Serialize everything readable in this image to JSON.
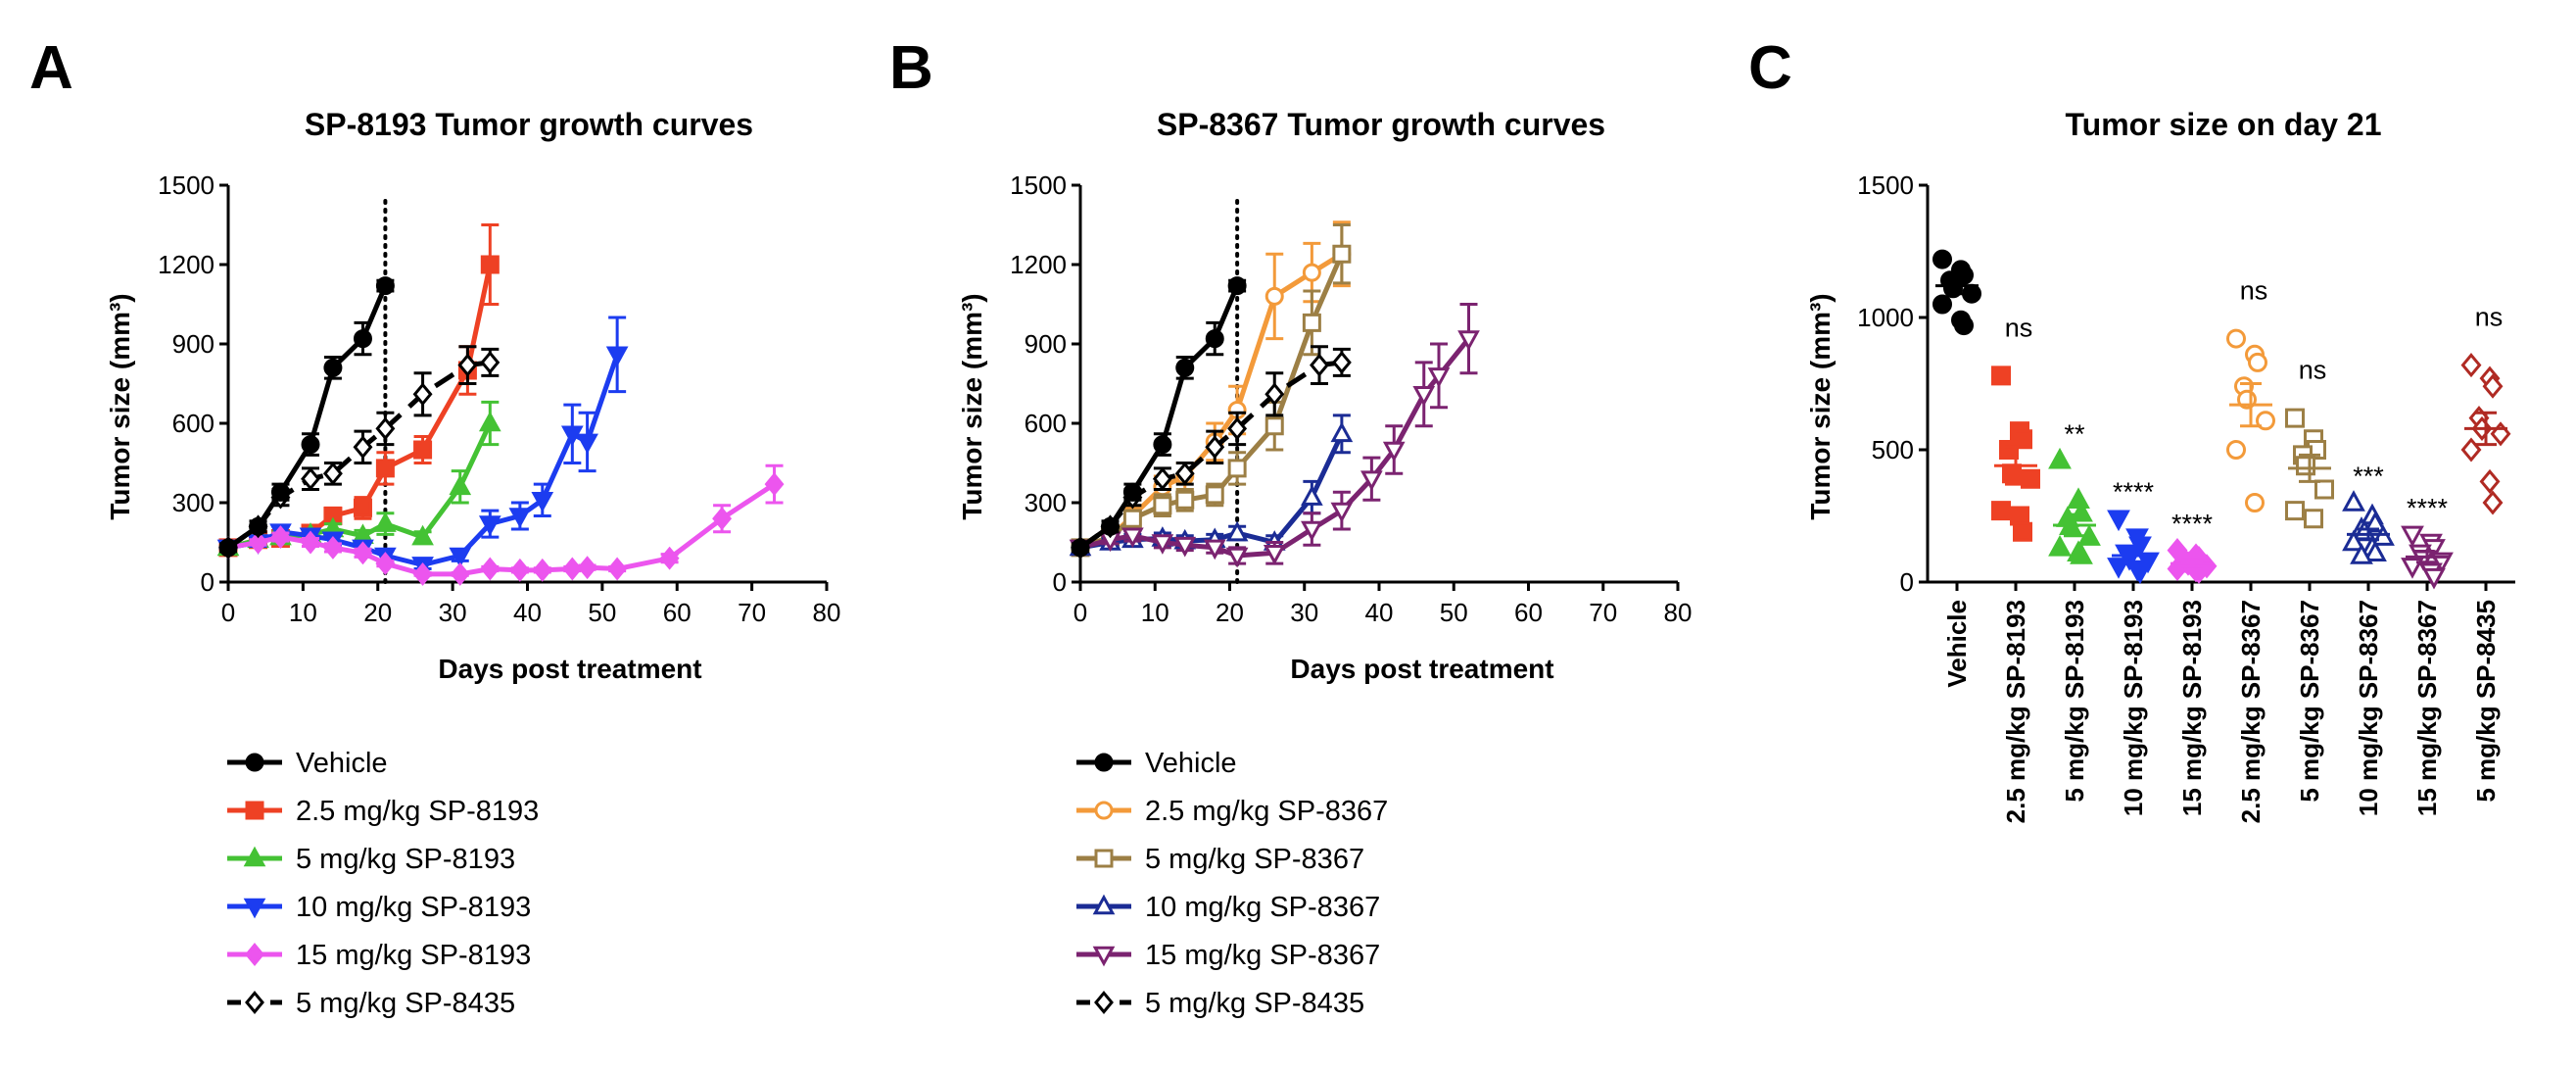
{
  "panels": [
    {
      "letter": "A",
      "title": "SP-8193 Tumor growth curves"
    },
    {
      "letter": "B",
      "title": "SP-8367 Tumor growth curves"
    },
    {
      "letter": "C",
      "title": "Tumor size on day 21"
    }
  ],
  "styles": {
    "black": {
      "color": "#000000",
      "marker": "circle",
      "fill": true,
      "dash": false
    },
    "red": {
      "color": "#EE4124",
      "marker": "square",
      "fill": true,
      "dash": false
    },
    "green": {
      "color": "#44C234",
      "marker": "triangle",
      "fill": true,
      "dash": false
    },
    "blue": {
      "color": "#1C3CF0",
      "marker": "tri-down",
      "fill": true,
      "dash": false
    },
    "magenta": {
      "color": "#EC55EE",
      "marker": "diamond",
      "fill": true,
      "dash": false
    },
    "sp8435": {
      "color": "#000000",
      "marker": "diamond",
      "fill": false,
      "dash": true
    },
    "orange": {
      "color": "#F39A3A",
      "marker": "circle",
      "fill": false,
      "dash": false
    },
    "olive": {
      "color": "#9C7F45",
      "marker": "square",
      "fill": false,
      "dash": false
    },
    "navy": {
      "color": "#1B2C95",
      "marker": "triangle",
      "fill": false,
      "dash": false
    },
    "purple": {
      "color": "#7B2370",
      "marker": "tri-down",
      "fill": false,
      "dash": false
    },
    "darkred": {
      "color": "#B02A23",
      "marker": "diamond",
      "fill": false,
      "dash": false
    }
  },
  "chart_data": [
    {
      "type": "line",
      "title": "SP-8193 Tumor growth curves",
      "xlabel": "Days post treatment",
      "ylabel": "Tumor size (mm³)",
      "xlim": [
        0,
        80
      ],
      "ylim": [
        0,
        1500
      ],
      "xticks": [
        0,
        10,
        20,
        30,
        40,
        50,
        60,
        70,
        80
      ],
      "yticks": [
        0,
        300,
        600,
        900,
        1200,
        1500
      ],
      "vline_x": 21,
      "series": [
        {
          "name": "Vehicle",
          "style": "black",
          "x": [
            0,
            4,
            7,
            11,
            14,
            18,
            21
          ],
          "y": [
            130,
            210,
            340,
            520,
            810,
            920,
            1120
          ],
          "err": [
            15,
            20,
            30,
            40,
            40,
            60,
            20
          ]
        },
        {
          "name": "2.5 mg/kg SP-8193",
          "style": "red",
          "x": [
            0,
            4,
            7,
            11,
            14,
            18,
            21,
            26,
            32,
            35
          ],
          "y": [
            130,
            160,
            165,
            185,
            250,
            280,
            430,
            500,
            800,
            1200
          ],
          "err": [
            10,
            15,
            20,
            20,
            30,
            40,
            60,
            50,
            90,
            150
          ]
        },
        {
          "name": "5 mg/kg SP-8193",
          "style": "green",
          "x": [
            0,
            4,
            7,
            11,
            14,
            18,
            21,
            26,
            31,
            35
          ],
          "y": [
            130,
            160,
            170,
            180,
            200,
            175,
            220,
            170,
            360,
            600
          ],
          "err": [
            10,
            15,
            20,
            20,
            20,
            20,
            40,
            20,
            60,
            80
          ]
        },
        {
          "name": "10 mg/kg SP-8193",
          "style": "blue",
          "x": [
            0,
            4,
            7,
            11,
            14,
            18,
            21,
            26,
            31,
            35,
            39,
            42,
            46,
            48,
            52
          ],
          "y": [
            130,
            150,
            190,
            175,
            160,
            130,
            100,
            65,
            100,
            220,
            250,
            310,
            560,
            530,
            860
          ],
          "err": [
            10,
            15,
            20,
            20,
            20,
            20,
            20,
            15,
            20,
            50,
            50,
            60,
            110,
            110,
            140
          ]
        },
        {
          "name": "15 mg/kg SP-8193",
          "style": "magenta",
          "x": [
            0,
            4,
            7,
            11,
            14,
            18,
            21,
            26,
            31,
            35,
            39,
            42,
            46,
            48,
            52,
            59,
            66,
            73
          ],
          "y": [
            130,
            150,
            170,
            150,
            130,
            110,
            70,
            30,
            30,
            50,
            45,
            45,
            50,
            55,
            50,
            90,
            240,
            370
          ],
          "err": [
            10,
            10,
            15,
            15,
            15,
            15,
            10,
            5,
            5,
            8,
            8,
            8,
            8,
            8,
            8,
            15,
            50,
            70
          ]
        },
        {
          "name": "5 mg/kg SP-8435",
          "style": "sp8435",
          "x": [
            0,
            4,
            7,
            11,
            14,
            18,
            21,
            26,
            32,
            35
          ],
          "y": [
            130,
            210,
            320,
            390,
            410,
            510,
            580,
            710,
            820,
            830
          ],
          "err": [
            10,
            20,
            30,
            40,
            40,
            60,
            60,
            80,
            70,
            50
          ]
        }
      ]
    },
    {
      "type": "line",
      "title": "SP-8367 Tumor growth curves",
      "xlabel": "Days post treatment",
      "ylabel": "Tumor size (mm³)",
      "xlim": [
        0,
        80
      ],
      "ylim": [
        0,
        1500
      ],
      "xticks": [
        0,
        10,
        20,
        30,
        40,
        50,
        60,
        70,
        80
      ],
      "yticks": [
        0,
        300,
        600,
        900,
        1200,
        1500
      ],
      "vline_x": 21,
      "series": [
        {
          "name": "Vehicle",
          "style": "black",
          "x": [
            0,
            4,
            7,
            11,
            14,
            18,
            21
          ],
          "y": [
            130,
            210,
            340,
            520,
            810,
            920,
            1120
          ],
          "err": [
            15,
            20,
            30,
            40,
            40,
            60,
            20
          ]
        },
        {
          "name": "2.5 mg/kg SP-8367",
          "style": "orange",
          "x": [
            0,
            4,
            7,
            11,
            14,
            18,
            21,
            26,
            31,
            35
          ],
          "y": [
            130,
            170,
            250,
            360,
            400,
            530,
            650,
            1080,
            1170,
            1240
          ],
          "err": [
            15,
            20,
            30,
            40,
            50,
            70,
            90,
            160,
            110,
            120
          ]
        },
        {
          "name": "5 mg/kg SP-8367",
          "style": "olive",
          "x": [
            0,
            4,
            7,
            11,
            14,
            18,
            21,
            26,
            31,
            35
          ],
          "y": [
            130,
            170,
            240,
            290,
            310,
            330,
            430,
            590,
            980,
            1240
          ],
          "err": [
            15,
            20,
            30,
            40,
            40,
            40,
            60,
            90,
            120,
            110
          ]
        },
        {
          "name": "10 mg/kg SP-8367",
          "style": "navy",
          "x": [
            0,
            4,
            7,
            11,
            14,
            18,
            21,
            26,
            31,
            35
          ],
          "y": [
            130,
            150,
            160,
            165,
            155,
            160,
            185,
            150,
            320,
            560
          ],
          "err": [
            10,
            15,
            20,
            20,
            20,
            20,
            25,
            25,
            60,
            70
          ]
        },
        {
          "name": "15 mg/kg SP-8367",
          "style": "purple",
          "x": [
            0,
            4,
            7,
            11,
            14,
            18,
            21,
            26,
            31,
            35,
            39,
            42,
            46,
            48,
            52
          ],
          "y": [
            130,
            160,
            175,
            150,
            140,
            130,
            100,
            110,
            200,
            270,
            390,
            500,
            710,
            780,
            920
          ],
          "err": [
            10,
            15,
            20,
            20,
            20,
            20,
            30,
            40,
            60,
            70,
            80,
            90,
            120,
            120,
            130
          ]
        },
        {
          "name": "5 mg/kg SP-8435",
          "style": "sp8435",
          "x": [
            0,
            4,
            7,
            11,
            14,
            18,
            21,
            26,
            32,
            35
          ],
          "y": [
            130,
            210,
            320,
            390,
            410,
            510,
            580,
            710,
            820,
            830
          ],
          "err": [
            10,
            20,
            30,
            40,
            40,
            60,
            60,
            80,
            70,
            50
          ]
        }
      ]
    },
    {
      "type": "scatter",
      "title": "Tumor size on day 21",
      "ylabel": "Tumor size (mm³)",
      "ylim": [
        0,
        1500
      ],
      "yticks": [
        0,
        500,
        1000,
        1500
      ],
      "groups": [
        {
          "label": "Vehicle",
          "style": "black",
          "sig": "",
          "values": [
            1220,
            1180,
            1160,
            1140,
            1110,
            1090,
            1050,
            990,
            970
          ],
          "mean": 1120,
          "sem": 30
        },
        {
          "label": "2.5 mg/kg SP-8193",
          "style": "red",
          "sig": "ns",
          "values": [
            780,
            570,
            540,
            500,
            410,
            390,
            270,
            250,
            190
          ],
          "mean": 440,
          "sem": 70
        },
        {
          "label": "5 mg/kg SP-8193",
          "style": "green",
          "sig": "**",
          "values": [
            460,
            310,
            260,
            240,
            210,
            170,
            130,
            110,
            100
          ],
          "mean": 215,
          "sem": 40
        },
        {
          "label": "10 mg/kg SP-8193",
          "style": "blue",
          "sig": "****",
          "values": [
            240,
            170,
            140,
            110,
            90,
            80,
            60,
            50,
            40
          ],
          "mean": 100,
          "sem": 25
        },
        {
          "label": "15 mg/kg SP-8193",
          "style": "magenta",
          "sig": "****",
          "values": [
            120,
            100,
            90,
            80,
            70,
            60,
            50,
            45,
            40
          ],
          "mean": 70,
          "sem": 10
        },
        {
          "label": "2.5 mg/kg SP-8367",
          "style": "orange",
          "sig": "ns",
          "values": [
            920,
            860,
            830,
            740,
            690,
            610,
            500,
            300
          ],
          "mean": 670,
          "sem": 80
        },
        {
          "label": "5 mg/kg SP-8367",
          "style": "olive",
          "sig": "ns",
          "values": [
            620,
            540,
            500,
            480,
            440,
            350,
            270,
            240
          ],
          "mean": 430,
          "sem": 50
        },
        {
          "label": "10 mg/kg SP-8367",
          "style": "navy",
          "sig": "***",
          "values": [
            300,
            250,
            220,
            200,
            190,
            170,
            150,
            130,
            110,
            100
          ],
          "mean": 180,
          "sem": 20
        },
        {
          "label": "15 mg/kg SP-8367",
          "style": "purple",
          "sig": "****",
          "values": [
            180,
            150,
            130,
            110,
            90,
            80,
            60,
            40,
            20
          ],
          "mean": 95,
          "sem": 20
        },
        {
          "label": "5 mg/kg SP-8435",
          "style": "darkred",
          "sig": "ns",
          "values": [
            820,
            770,
            740,
            620,
            580,
            560,
            500,
            380,
            300
          ],
          "mean": 580,
          "sem": 60
        }
      ]
    }
  ],
  "legends": [
    [
      {
        "label": "Vehicle",
        "style": "black"
      },
      {
        "label": "2.5 mg/kg SP-8193",
        "style": "red"
      },
      {
        "label": "5 mg/kg SP-8193",
        "style": "green"
      },
      {
        "label": "10 mg/kg SP-8193",
        "style": "blue"
      },
      {
        "label": "15 mg/kg SP-8193",
        "style": "magenta"
      },
      {
        "label": "5 mg/kg SP-8435",
        "style": "sp8435"
      }
    ],
    [
      {
        "label": "Vehicle",
        "style": "black"
      },
      {
        "label": "2.5 mg/kg SP-8367",
        "style": "orange"
      },
      {
        "label": "5 mg/kg SP-8367",
        "style": "olive"
      },
      {
        "label": "10 mg/kg SP-8367",
        "style": "navy"
      },
      {
        "label": "15 mg/kg SP-8367",
        "style": "purple"
      },
      {
        "label": "5 mg/kg SP-8435",
        "style": "sp8435"
      }
    ]
  ]
}
